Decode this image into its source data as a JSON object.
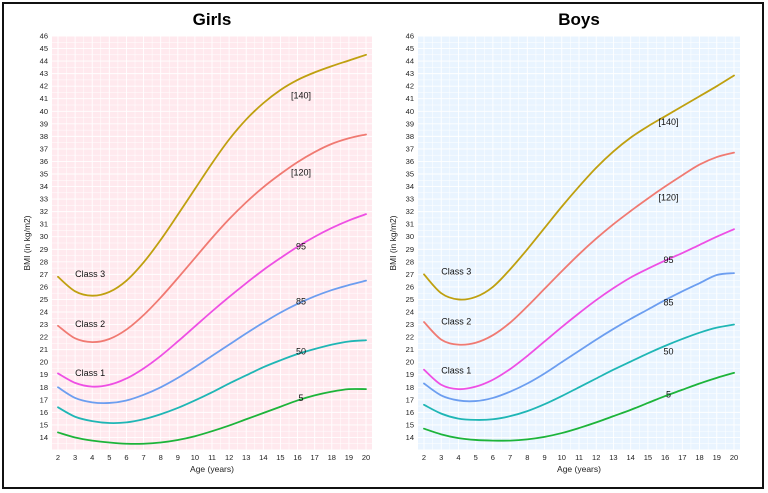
{
  "chart_data": [
    {
      "type": "line",
      "title": "Girls",
      "xlabel": "Age (years)",
      "ylabel": "BMI (in kg/m2)",
      "xlim": [
        2,
        20
      ],
      "ylim": [
        13,
        46
      ],
      "x_ticks": [
        2,
        3,
        4,
        5,
        6,
        7,
        8,
        9,
        10,
        11,
        12,
        13,
        14,
        15,
        16,
        17,
        18,
        19,
        20
      ],
      "y_ticks": [
        14,
        15,
        16,
        17,
        18,
        19,
        20,
        21,
        22,
        23,
        24,
        25,
        26,
        27,
        28,
        29,
        30,
        31,
        32,
        33,
        34,
        35,
        36,
        37,
        38,
        39,
        40,
        41,
        42,
        43,
        44,
        45,
        46
      ],
      "background": "#ffe9ee",
      "grid": true,
      "x": [
        2,
        3,
        4,
        5,
        6,
        7,
        8,
        9,
        10,
        11,
        12,
        13,
        14,
        15,
        16,
        17,
        18,
        19,
        20
      ],
      "series": [
        {
          "name": "5",
          "color": "#1db43a",
          "label": "5",
          "label_at": [
            16.2,
            16.9
          ],
          "values": [
            14.4,
            14.0,
            13.75,
            13.6,
            13.5,
            13.5,
            13.6,
            13.8,
            14.1,
            14.5,
            14.95,
            15.45,
            15.95,
            16.45,
            16.95,
            17.35,
            17.65,
            17.85,
            17.85
          ]
        },
        {
          "name": "50",
          "color": "#1fb6b5",
          "label": "50",
          "label_at": [
            16.2,
            20.6
          ],
          "values": [
            16.4,
            15.65,
            15.3,
            15.15,
            15.2,
            15.45,
            15.85,
            16.35,
            16.95,
            17.6,
            18.3,
            18.95,
            19.6,
            20.15,
            20.65,
            21.05,
            21.4,
            21.65,
            21.75
          ]
        },
        {
          "name": "85",
          "color": "#6c9ef0",
          "label": "85",
          "label_at": [
            16.2,
            24.6
          ],
          "values": [
            18.0,
            17.15,
            16.8,
            16.75,
            16.95,
            17.4,
            18.0,
            18.75,
            19.6,
            20.5,
            21.4,
            22.3,
            23.15,
            23.95,
            24.65,
            25.25,
            25.75,
            26.15,
            26.5
          ]
        },
        {
          "name": "95",
          "color": "#ee4fe4",
          "label": "95",
          "label_at": [
            16.2,
            29.0
          ],
          "values": [
            19.1,
            18.35,
            18.05,
            18.2,
            18.7,
            19.5,
            20.5,
            21.65,
            22.85,
            24.05,
            25.2,
            26.3,
            27.35,
            28.3,
            29.2,
            30.0,
            30.7,
            31.3,
            31.8
          ]
        },
        {
          "name": "[120]",
          "color": "#f07a72",
          "label": "[120]",
          "label_at": [
            16.2,
            34.9
          ],
          "values": [
            22.9,
            21.9,
            21.6,
            21.85,
            22.6,
            23.75,
            25.15,
            26.7,
            28.3,
            29.9,
            31.4,
            32.75,
            33.95,
            35.0,
            35.95,
            36.75,
            37.4,
            37.85,
            38.15
          ]
        },
        {
          "name": "[140]",
          "color": "#bfa00f",
          "label": "[140]",
          "label_at": [
            16.2,
            41.0
          ],
          "values": [
            26.8,
            25.65,
            25.3,
            25.6,
            26.5,
            27.95,
            29.75,
            31.75,
            33.8,
            35.85,
            37.75,
            39.35,
            40.65,
            41.7,
            42.5,
            43.1,
            43.6,
            44.05,
            44.5
          ]
        }
      ],
      "class_labels": [
        {
          "text": "Class 3",
          "at": [
            3.0,
            26.8
          ]
        },
        {
          "text": "Class 2",
          "at": [
            3.0,
            22.8
          ]
        },
        {
          "text": "Class 1",
          "at": [
            3.0,
            18.9
          ]
        }
      ]
    },
    {
      "type": "line",
      "title": "Boys",
      "xlabel": "Age (years)",
      "ylabel": "BMI (in kg/m2)",
      "xlim": [
        2,
        20
      ],
      "ylim": [
        13,
        46
      ],
      "x_ticks": [
        2,
        3,
        4,
        5,
        6,
        7,
        8,
        9,
        10,
        11,
        12,
        13,
        14,
        15,
        16,
        17,
        18,
        19,
        20
      ],
      "y_ticks": [
        14,
        15,
        16,
        17,
        18,
        19,
        20,
        21,
        22,
        23,
        24,
        25,
        26,
        27,
        28,
        29,
        30,
        31,
        32,
        33,
        34,
        35,
        36,
        37,
        38,
        39,
        40,
        41,
        42,
        43,
        44,
        45,
        46
      ],
      "background": "#e9f4ff",
      "grid": true,
      "x": [
        2,
        3,
        4,
        5,
        6,
        7,
        8,
        9,
        10,
        11,
        12,
        13,
        14,
        15,
        16,
        17,
        18,
        19,
        20
      ],
      "series": [
        {
          "name": "5",
          "color": "#1db43a",
          "label": "5",
          "label_at": [
            16.2,
            17.2
          ],
          "values": [
            14.7,
            14.25,
            13.95,
            13.8,
            13.75,
            13.75,
            13.85,
            14.05,
            14.35,
            14.75,
            15.2,
            15.7,
            16.2,
            16.75,
            17.3,
            17.8,
            18.3,
            18.75,
            19.15
          ]
        },
        {
          "name": "50",
          "color": "#1fb6b5",
          "label": "50",
          "label_at": [
            16.2,
            20.6
          ],
          "values": [
            16.6,
            15.9,
            15.5,
            15.4,
            15.45,
            15.7,
            16.1,
            16.65,
            17.3,
            18.0,
            18.7,
            19.4,
            20.05,
            20.7,
            21.3,
            21.85,
            22.35,
            22.75,
            23.0
          ]
        },
        {
          "name": "85",
          "color": "#6c9ef0",
          "label": "85",
          "label_at": [
            16.2,
            24.5
          ],
          "values": [
            18.3,
            17.35,
            16.95,
            16.9,
            17.15,
            17.65,
            18.3,
            19.1,
            20.0,
            20.9,
            21.8,
            22.65,
            23.45,
            24.2,
            24.95,
            25.65,
            26.3,
            26.95,
            27.1
          ]
        },
        {
          "name": "95",
          "color": "#ee4fe4",
          "label": "95",
          "label_at": [
            16.2,
            27.9
          ],
          "values": [
            19.4,
            18.2,
            17.85,
            18.05,
            18.6,
            19.45,
            20.5,
            21.65,
            22.8,
            23.9,
            24.95,
            25.9,
            26.75,
            27.45,
            28.1,
            28.7,
            29.35,
            30.0,
            30.6
          ]
        },
        {
          "name": "[120]",
          "color": "#f07a72",
          "label": "[120]",
          "label_at": [
            16.2,
            32.9
          ],
          "values": [
            23.2,
            21.8,
            21.4,
            21.55,
            22.15,
            23.15,
            24.45,
            25.85,
            27.25,
            28.6,
            29.85,
            31.0,
            32.05,
            33.05,
            34.0,
            34.9,
            35.75,
            36.35,
            36.7
          ]
        },
        {
          "name": "[140]",
          "color": "#bfa00f",
          "label": "[140]",
          "label_at": [
            16.2,
            38.9
          ],
          "values": [
            27.0,
            25.5,
            25.0,
            25.2,
            26.0,
            27.4,
            29.0,
            30.7,
            32.4,
            34.0,
            35.5,
            36.8,
            37.9,
            38.8,
            39.6,
            40.4,
            41.2,
            42.0,
            42.85
          ]
        }
      ],
      "class_labels": [
        {
          "text": "Class 3",
          "at": [
            3.0,
            27.0
          ]
        },
        {
          "text": "Class 2",
          "at": [
            3.0,
            23.0
          ]
        },
        {
          "text": "Class 1",
          "at": [
            3.0,
            19.1
          ]
        }
      ]
    }
  ]
}
